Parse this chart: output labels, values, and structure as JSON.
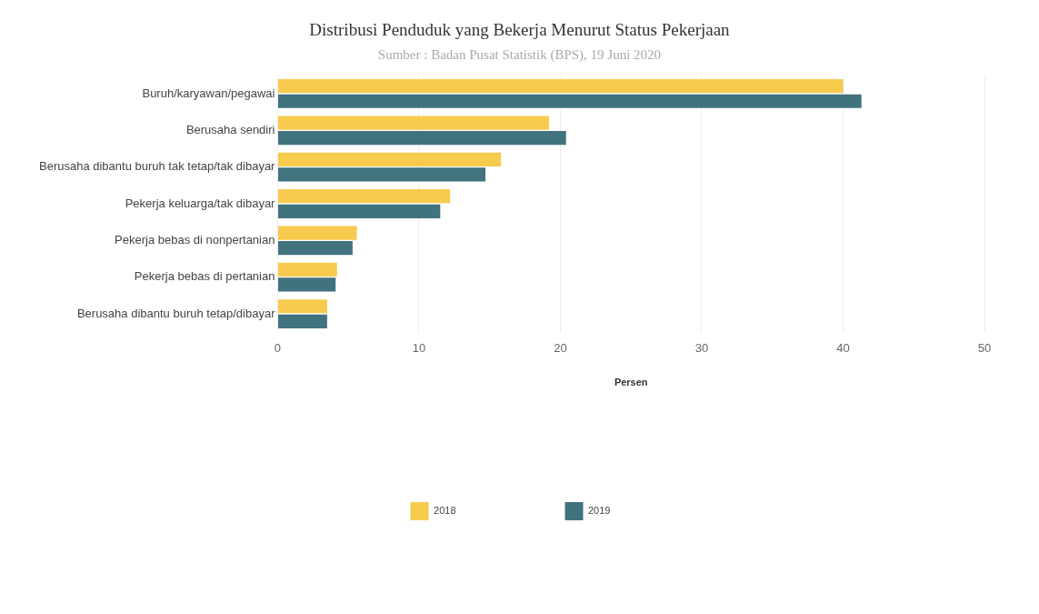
{
  "chart_data": {
    "type": "bar",
    "orientation": "horizontal",
    "title": "Distribusi Penduduk yang Bekerja Menurut Status Pekerjaan",
    "subtitle": "Sumber : Badan Pusat Statistik (BPS), 19 Juni 2020",
    "xlabel": "Persen",
    "categories": [
      "Buruh/karyawan/pegawai",
      "Berusaha sendiri",
      "Berusaha dibantu buruh tak tetap/tak dibayar",
      "Pekerja keluarga/tak dibayar",
      "Pekerja bebas di nonpertanian",
      "Pekerja bebas di pertanian",
      "Berusaha dibantu buruh tetap/dibayar"
    ],
    "series": [
      {
        "name": "2018",
        "color": "#f7cb4d",
        "values": [
          40.0,
          19.2,
          15.8,
          12.2,
          5.6,
          4.2,
          3.5
        ]
      },
      {
        "name": "2019",
        "color": "#41737f",
        "values": [
          41.3,
          20.4,
          14.7,
          11.5,
          5.3,
          4.1,
          3.5
        ]
      }
    ],
    "xlim": [
      0,
      50
    ],
    "xticks": [
      0,
      10,
      20,
      30,
      40,
      50
    ],
    "grid": "x",
    "legend": "bottom"
  }
}
